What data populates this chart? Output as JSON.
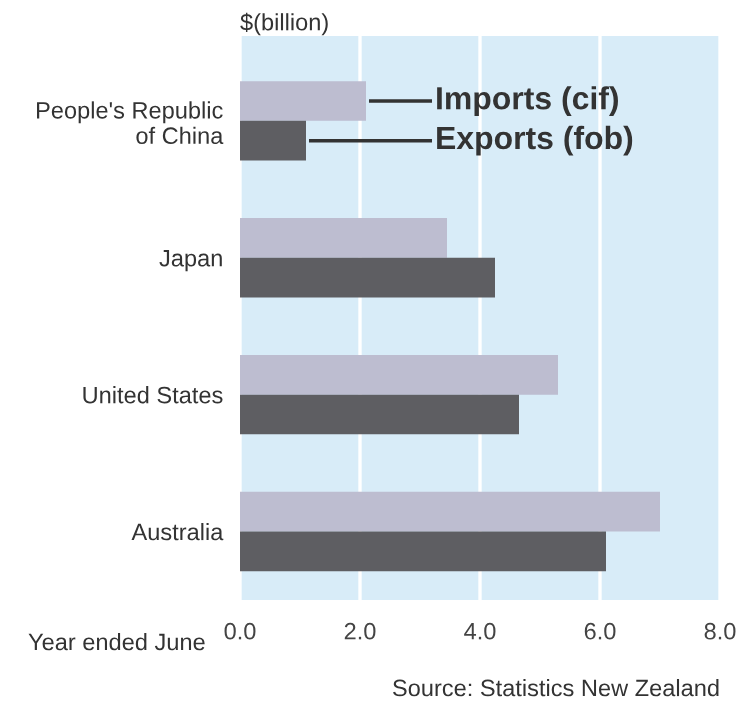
{
  "chart_data": {
    "type": "bar",
    "orientation": "horizontal",
    "xlabel": "$(billion)",
    "categories": [
      "People's Republic\nof China",
      "Japan",
      "United States",
      "Australia"
    ],
    "series": [
      {
        "name": "Imports (cif)",
        "color": "#bdbdd0",
        "values": [
          2.1,
          3.45,
          5.3,
          7.0
        ]
      },
      {
        "name": "Exports (fob)",
        "color": "#5e5e62",
        "values": [
          1.1,
          4.25,
          4.65,
          6.1
        ]
      }
    ],
    "xlim": [
      0,
      8
    ],
    "xticks": [
      {
        "value": 0,
        "label": "0.0"
      },
      {
        "value": 2,
        "label": "2.0"
      },
      {
        "value": 4,
        "label": "4.0"
      },
      {
        "value": 6,
        "label": "6.0"
      },
      {
        "value": 8,
        "label": "8.0"
      }
    ],
    "grid": "x",
    "annotations": [
      "Year ended June",
      "Source: Statistics New Zealand"
    ]
  }
}
